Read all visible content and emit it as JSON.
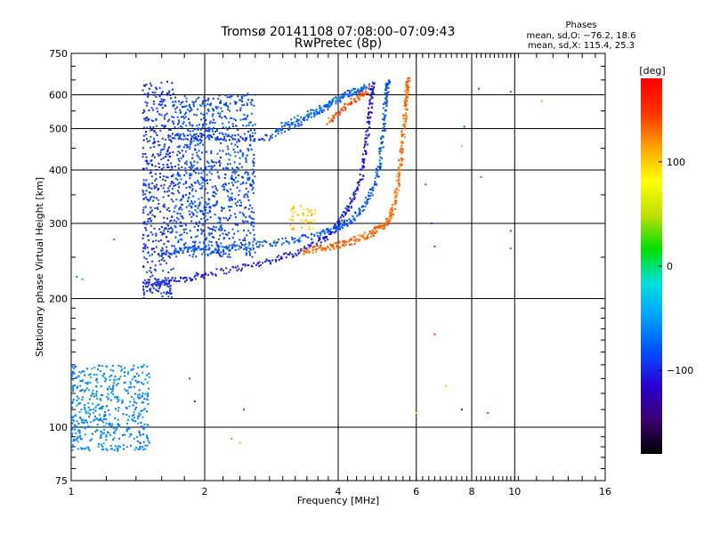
{
  "chart_data": {
    "type": "scatter",
    "title": "Tromsø 20141108 07:08:00–07:09:43",
    "subtitle": "RwPretec (8p)",
    "xlabel": "Frequency [MHz]",
    "ylabel": "Stationary phase Virtual Height [km]",
    "x_scale": "log",
    "y_scale": "log",
    "xlim": [
      1,
      16
    ],
    "ylim": [
      75,
      750
    ],
    "x_ticks": [
      {
        "value": 1,
        "label": "1"
      },
      {
        "value": 2,
        "label": "2"
      },
      {
        "value": 4,
        "label": "4"
      },
      {
        "value": 6,
        "label": "6"
      },
      {
        "value": 8,
        "label": "8"
      },
      {
        "value": 10,
        "label": "10"
      },
      {
        "value": 16,
        "label": "16"
      }
    ],
    "y_ticks": [
      {
        "value": 75,
        "label": "75"
      },
      {
        "value": 100,
        "label": "100"
      },
      {
        "value": 200,
        "label": "200"
      },
      {
        "value": 300,
        "label": "300"
      },
      {
        "value": 400,
        "label": "400"
      },
      {
        "value": 500,
        "label": "500"
      },
      {
        "value": 600,
        "label": "600"
      },
      {
        "value": 750,
        "label": "750"
      }
    ],
    "grid": true,
    "stats": {
      "heading": "Phases",
      "line_o": "mean, sd,O: −76.2, 18.6",
      "line_x": "mean, sd,X: 115.4, 25.3"
    },
    "colorbar": {
      "label": "[deg]",
      "range": [
        -180,
        180
      ],
      "ticks": [
        {
          "value": 100,
          "label": "100"
        },
        {
          "value": 0,
          "label": "0"
        },
        {
          "value": -100,
          "label": "−100"
        }
      ],
      "stops": [
        "#000000",
        "#3a0070",
        "#2a00d0",
        "#0050ff",
        "#00a0ff",
        "#00e0e0",
        "#00e000",
        "#c0e000",
        "#ffff00",
        "#ffa000",
        "#ff3000",
        "#ff0000"
      ]
    },
    "traces": [
      {
        "phase": -105,
        "x": [
          1.45,
          1.6,
          1.8,
          2.0,
          2.4,
          2.8,
          3.2,
          3.6,
          3.9,
          4.1,
          4.3,
          4.5,
          4.6,
          4.7,
          4.75,
          4.8
        ],
        "y": [
          215,
          218,
          222,
          228,
          236,
          245,
          256,
          270,
          288,
          310,
          340,
          380,
          440,
          520,
          590,
          640
        ]
      },
      {
        "phase": -78,
        "x": [
          1.6,
          1.8,
          2.0,
          2.4,
          2.8,
          3.2,
          3.6,
          4.0,
          4.3,
          4.55,
          4.8,
          4.95,
          5.05,
          5.1,
          5.15,
          5.2
        ],
        "y": [
          255,
          260,
          262,
          265,
          270,
          274,
          282,
          292,
          305,
          328,
          360,
          410,
          480,
          560,
          620,
          645
        ]
      },
      {
        "phase": 130,
        "x": [
          3.3,
          3.6,
          3.9,
          4.2,
          4.5,
          4.8,
          5.0,
          5.2,
          5.35,
          5.45,
          5.55,
          5.62,
          5.68,
          5.72,
          5.76
        ],
        "y": [
          258,
          262,
          265,
          270,
          278,
          285,
          294,
          305,
          330,
          370,
          430,
          500,
          570,
          620,
          650
        ]
      },
      {
        "phase": -95,
        "x": [
          1.7,
          2.0,
          2.4,
          2.8
        ],
        "y": [
          480,
          478,
          476,
          475
        ]
      },
      {
        "phase": -80,
        "x": [
          2.8,
          3.2,
          3.6,
          4.0,
          4.4,
          4.7
        ],
        "y": [
          480,
          510,
          545,
          585,
          615,
          625
        ]
      },
      {
        "phase": -72,
        "x": [
          2.9,
          3.3,
          3.7,
          4.1,
          4.5
        ],
        "y": [
          500,
          530,
          560,
          595,
          625
        ]
      },
      {
        "phase": 140,
        "x": [
          3.8,
          4.1,
          4.4,
          4.7
        ],
        "y": [
          520,
          555,
          590,
          620
        ]
      }
    ],
    "regions": [
      {
        "phase": -95,
        "x_range": [
          1.45,
          1.7
        ],
        "y_range": [
          200,
          650
        ]
      },
      {
        "phase": -85,
        "x_range": [
          1.7,
          2.6
        ],
        "y_range": [
          250,
          600
        ]
      },
      {
        "phase": 100,
        "x_range": [
          3.1,
          3.55
        ],
        "y_range": [
          290,
          330
        ]
      },
      {
        "phase": -60,
        "x_range": [
          1.0,
          1.5
        ],
        "y_range": [
          88,
          140
        ]
      }
    ],
    "isolated_points": [
      {
        "x": 11.5,
        "y": 580,
        "phase": 100
      },
      {
        "x": 9.8,
        "y": 610,
        "phase": 150
      },
      {
        "x": 8.3,
        "y": 620,
        "phase": -80
      },
      {
        "x": 6.6,
        "y": 165,
        "phase": 150
      },
      {
        "x": 7.0,
        "y": 125,
        "phase": 100
      },
      {
        "x": 7.6,
        "y": 110,
        "phase": -100
      },
      {
        "x": 8.7,
        "y": 108,
        "phase": 160
      },
      {
        "x": 6.0,
        "y": 108,
        "phase": 60
      },
      {
        "x": 2.4,
        "y": 92,
        "phase": 110
      },
      {
        "x": 2.3,
        "y": 94,
        "phase": 120
      },
      {
        "x": 2.45,
        "y": 110,
        "phase": -80
      },
      {
        "x": 9.8,
        "y": 288,
        "phase": 140
      },
      {
        "x": 9.8,
        "y": 262,
        "phase": 150
      },
      {
        "x": 6.5,
        "y": 300,
        "phase": -90
      },
      {
        "x": 6.6,
        "y": 265,
        "phase": -85
      },
      {
        "x": 6.3,
        "y": 370,
        "phase": 150
      },
      {
        "x": 7.6,
        "y": 455,
        "phase": 120
      },
      {
        "x": 7.7,
        "y": 505,
        "phase": -80
      },
      {
        "x": 8.4,
        "y": 385,
        "phase": -60
      },
      {
        "x": 1.2,
        "y": 95,
        "phase": -70
      },
      {
        "x": 1.5,
        "y": 92,
        "phase": -90
      },
      {
        "x": 1.9,
        "y": 115,
        "phase": -100
      },
      {
        "x": 1.85,
        "y": 130,
        "phase": -60
      },
      {
        "x": 1.03,
        "y": 225,
        "phase": -60
      },
      {
        "x": 1.06,
        "y": 222,
        "phase": -55
      },
      {
        "x": 1.25,
        "y": 275,
        "phase": -70
      },
      {
        "x": 2.3,
        "y": 600,
        "phase": -70
      },
      {
        "x": 2.5,
        "y": 605,
        "phase": -60
      },
      {
        "x": 2.6,
        "y": 600,
        "phase": -75
      }
    ]
  }
}
